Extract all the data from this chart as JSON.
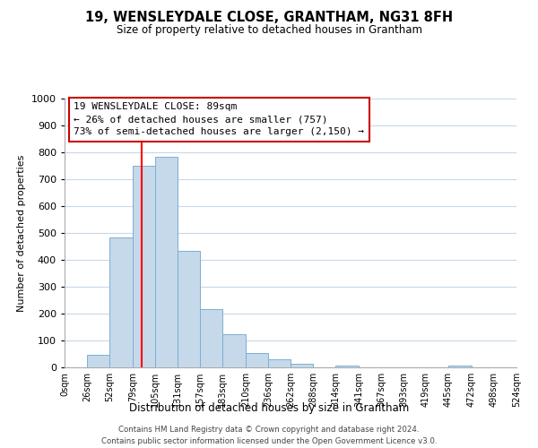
{
  "title": "19, WENSLEYDALE CLOSE, GRANTHAM, NG31 8FH",
  "subtitle": "Size of property relative to detached houses in Grantham",
  "xlabel": "Distribution of detached houses by size in Grantham",
  "ylabel": "Number of detached properties",
  "bar_color": "#c5d9ea",
  "bar_edge_color": "#7bafd4",
  "bins": [
    0,
    26,
    52,
    79,
    105,
    131,
    157,
    183,
    210,
    236,
    262,
    288,
    314,
    341,
    367,
    393,
    419,
    445,
    472,
    498,
    524
  ],
  "bar_heights": [
    0,
    47,
    483,
    750,
    784,
    435,
    218,
    125,
    52,
    29,
    14,
    0,
    6,
    0,
    0,
    0,
    0,
    7,
    0,
    0
  ],
  "tick_labels": [
    "0sqm",
    "26sqm",
    "52sqm",
    "79sqm",
    "105sqm",
    "131sqm",
    "157sqm",
    "183sqm",
    "210sqm",
    "236sqm",
    "262sqm",
    "288sqm",
    "314sqm",
    "341sqm",
    "367sqm",
    "393sqm",
    "419sqm",
    "445sqm",
    "472sqm",
    "498sqm",
    "524sqm"
  ],
  "ylim": [
    0,
    1000
  ],
  "yticks": [
    0,
    100,
    200,
    300,
    400,
    500,
    600,
    700,
    800,
    900,
    1000
  ],
  "redline_x": 89,
  "annotation_title": "19 WENSLEYDALE CLOSE: 89sqm",
  "annotation_line1": "← 26% of detached houses are smaller (757)",
  "annotation_line2": "73% of semi-detached houses are larger (2,150) →",
  "footer1": "Contains HM Land Registry data © Crown copyright and database right 2024.",
  "footer2": "Contains public sector information licensed under the Open Government Licence v3.0.",
  "background_color": "#ffffff",
  "grid_color": "#c8d8e8"
}
